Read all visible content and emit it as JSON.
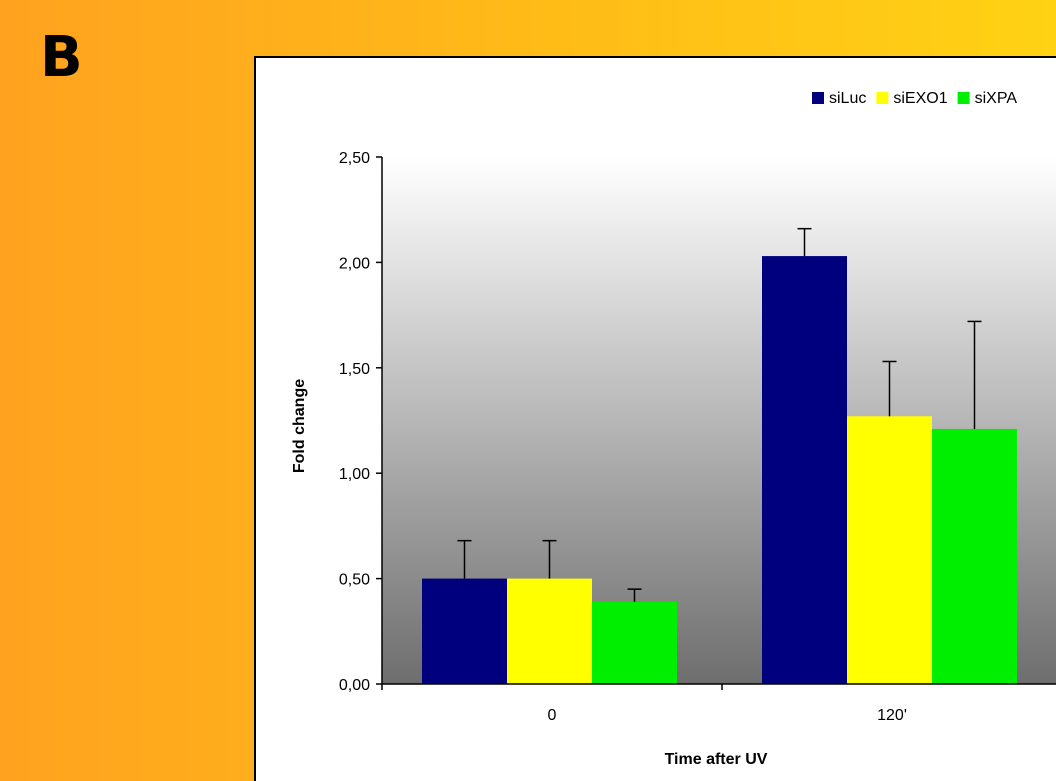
{
  "panel_label": "B",
  "chart_data": {
    "type": "bar",
    "categories": [
      "0",
      "120'"
    ],
    "series": [
      {
        "name": "siLuc",
        "color": "#00007f",
        "values": [
          0.5,
          2.03
        ],
        "errors": [
          0.18,
          0.13
        ]
      },
      {
        "name": "siEXO1",
        "color": "#ffff00",
        "values": [
          0.5,
          1.27
        ],
        "errors": [
          0.18,
          0.26
        ]
      },
      {
        "name": "siXPA",
        "color": "#00ee00",
        "values": [
          0.39,
          1.21
        ],
        "errors": [
          0.06,
          0.51
        ]
      }
    ],
    "xlabel": "Time after UV",
    "ylabel": "Fold change",
    "ylim": [
      0,
      2.5
    ],
    "yticks": [
      "0,00",
      "0,50",
      "1,00",
      "1,50",
      "2,00",
      "2,50"
    ],
    "ytick_values": [
      0,
      0.5,
      1.0,
      1.5,
      2.0,
      2.5
    ],
    "legend_position": "top-right",
    "plot_background": "gradient white-to-gray",
    "grid": false
  }
}
